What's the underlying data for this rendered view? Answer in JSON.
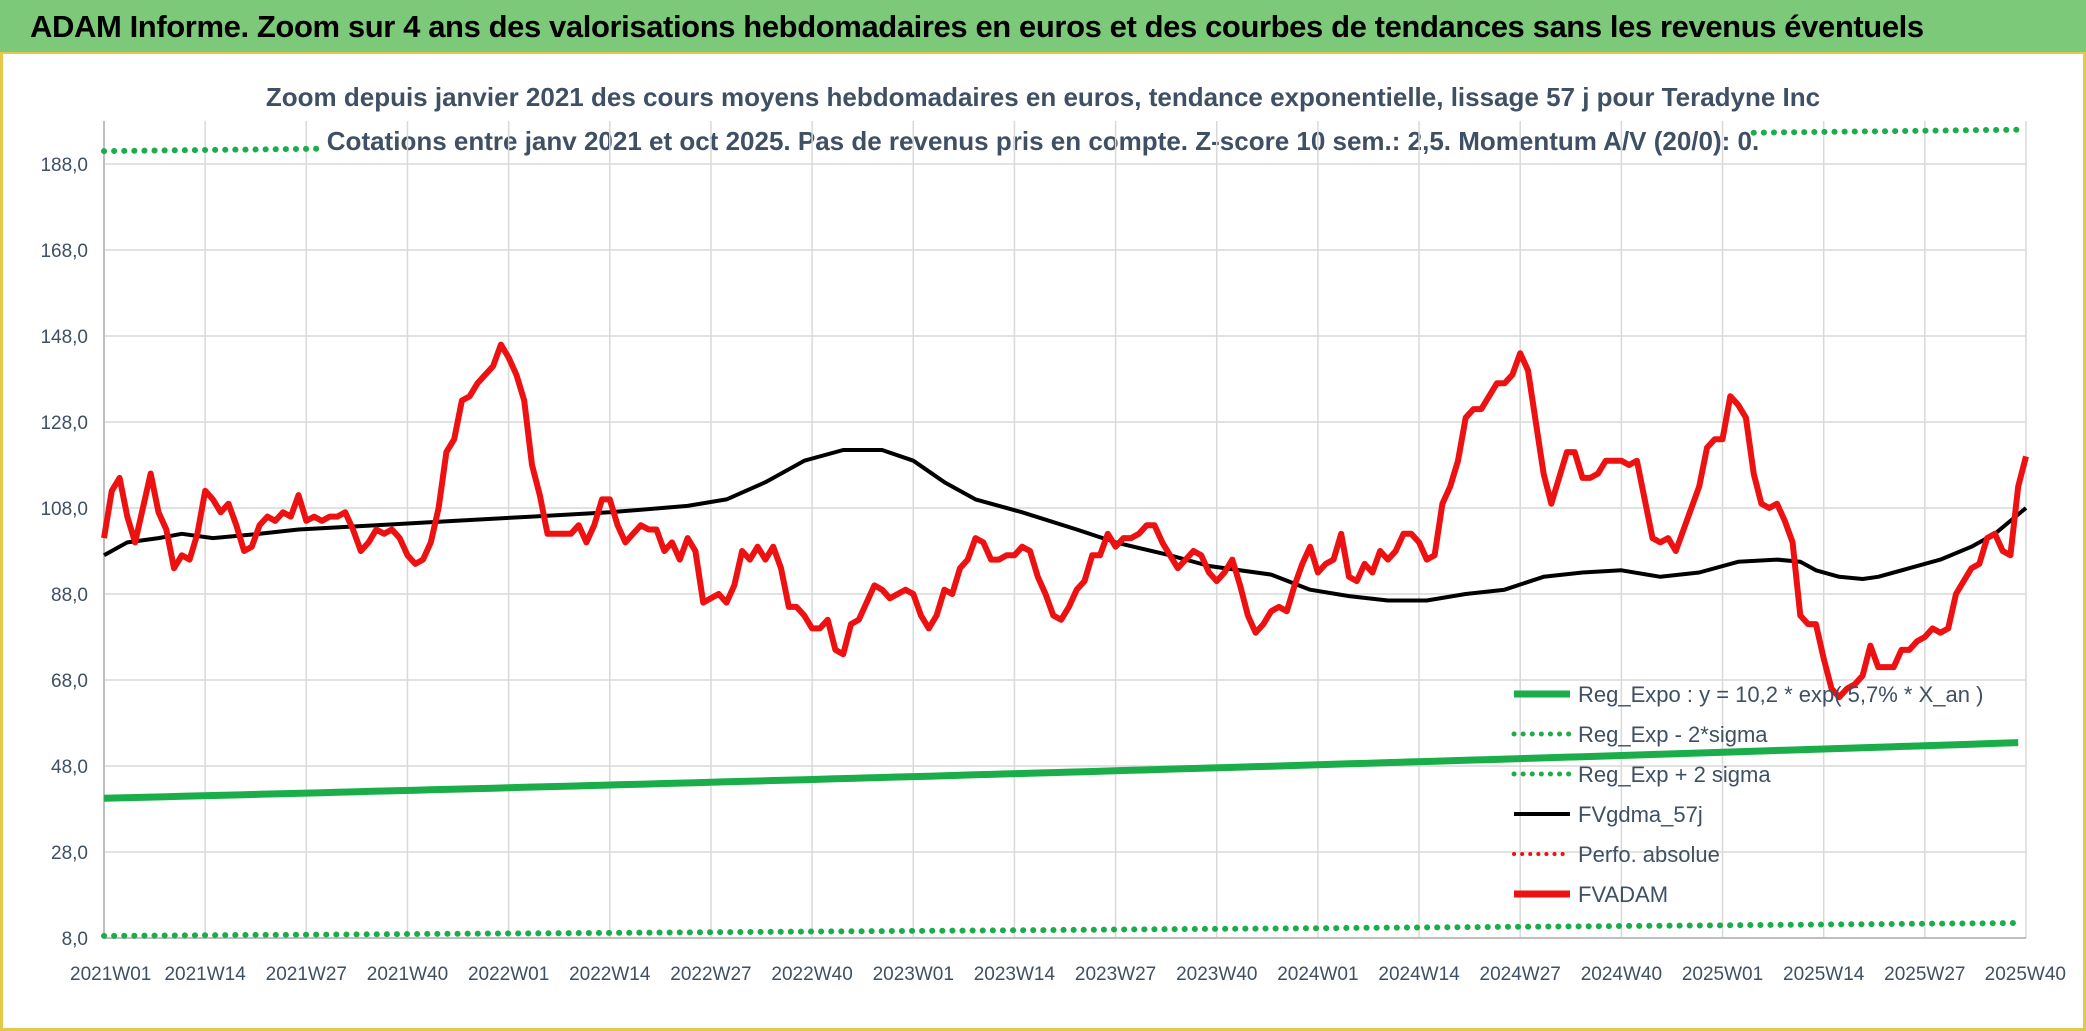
{
  "header": {
    "title": "ADAM Informe. Zoom sur 4 ans des valorisations hebdomadaires en euros et des courbes de tendances sans les revenus éventuels"
  },
  "chart_data": {
    "type": "line",
    "title": "Zoom depuis janvier 2021 des cours moyens hebdomadaires en euros, tendance exponentielle, lissage 57 j pour Teradyne Inc",
    "subtitle": "Cotations entre janv 2021 et oct 2025. Pas de revenus pris en compte. Z-score 10 sem.: 2,5. Momentum A/V (20/0): 0.",
    "ylim": [
      8,
      198
    ],
    "yticks": [
      "8,0",
      "28,0",
      "48,0",
      "68,0",
      "88,0",
      "108,0",
      "128,0",
      "148,0",
      "168,0",
      "188,0"
    ],
    "ytick_values": [
      8,
      28,
      48,
      68,
      88,
      108,
      128,
      148,
      168,
      188
    ],
    "xticks": [
      "2021W01",
      "2021W14",
      "2021W27",
      "2021W40",
      "2022W01",
      "2022W14",
      "2022W27",
      "2022W40",
      "2023W01",
      "2023W14",
      "2023W27",
      "2023W40",
      "2024W01",
      "2024W14",
      "2024W27",
      "2024W40",
      "2025W01",
      "2025W14",
      "2025W27",
      "2025W40"
    ],
    "x_start_label": "2021W01",
    "x_end_label": "2025W40",
    "num_weeks": 248,
    "legend_position": "bottom-right",
    "colors": {
      "green": "#1aad4a",
      "dotted_green": "#1aad4a",
      "black": "#000000",
      "red": "#ee1111"
    },
    "series": [
      {
        "name": "Reg_Expo : y = 10,2 * exp( 5,7% *  X_an )",
        "style": "solid-green",
        "start": 40.5,
        "end": 53.5
      },
      {
        "name": "Reg_Exp - 2*sigma",
        "style": "dotted-green",
        "start": 8.5,
        "end": 11.5
      },
      {
        "name": "Reg_Exp + 2 sigma",
        "style": "dotted-green",
        "start": 191,
        "end": 196
      },
      {
        "name": "FVgdma_57j",
        "style": "solid-black",
        "points": [
          [
            0,
            97
          ],
          [
            3,
            100
          ],
          [
            7,
            101
          ],
          [
            10,
            102
          ],
          [
            14,
            101
          ],
          [
            20,
            102
          ],
          [
            25,
            103
          ],
          [
            35,
            104
          ],
          [
            45,
            105
          ],
          [
            55,
            106
          ],
          [
            65,
            107
          ],
          [
            75,
            108.5
          ],
          [
            80,
            110
          ],
          [
            85,
            114
          ],
          [
            90,
            119
          ],
          [
            95,
            121.5
          ],
          [
            100,
            121.5
          ],
          [
            104,
            119
          ],
          [
            108,
            114
          ],
          [
            112,
            110
          ],
          [
            118,
            107
          ],
          [
            125,
            103
          ],
          [
            130,
            100
          ],
          [
            137,
            97
          ],
          [
            142,
            94.5
          ],
          [
            150,
            92.5
          ],
          [
            155,
            89
          ],
          [
            160,
            87.5
          ],
          [
            165,
            86.5
          ],
          [
            170,
            86.5
          ],
          [
            175,
            88
          ],
          [
            180,
            89
          ],
          [
            185,
            92
          ],
          [
            190,
            93
          ],
          [
            195,
            93.5
          ],
          [
            200,
            92
          ],
          [
            205,
            93
          ],
          [
            210,
            95.5
          ],
          [
            215,
            96
          ],
          [
            218,
            95.5
          ],
          [
            220,
            93.5
          ],
          [
            223,
            92
          ],
          [
            226,
            91.5
          ],
          [
            228,
            92
          ],
          [
            232,
            94
          ],
          [
            236,
            96
          ],
          [
            240,
            99
          ],
          [
            243,
            102
          ],
          [
            245,
            105
          ],
          [
            247,
            108
          ]
        ]
      },
      {
        "name": "Perfo. absolue",
        "style": "dotted-red",
        "points": []
      },
      {
        "name": "FVADAM",
        "style": "solid-red",
        "points": [
          [
            0,
            101
          ],
          [
            1,
            112
          ],
          [
            2,
            115
          ],
          [
            3,
            106
          ],
          [
            4,
            100
          ],
          [
            5,
            108
          ],
          [
            6,
            116
          ],
          [
            7,
            107
          ],
          [
            8,
            103
          ],
          [
            9,
            94
          ],
          [
            10,
            97
          ],
          [
            11,
            96
          ],
          [
            12,
            102
          ],
          [
            13,
            112
          ],
          [
            14,
            110
          ],
          [
            15,
            107
          ],
          [
            16,
            109
          ],
          [
            17,
            104
          ],
          [
            18,
            98
          ],
          [
            19,
            99
          ],
          [
            20,
            104
          ],
          [
            21,
            106
          ],
          [
            22,
            105
          ],
          [
            23,
            107
          ],
          [
            24,
            106
          ],
          [
            25,
            111
          ],
          [
            26,
            105
          ],
          [
            27,
            106
          ],
          [
            28,
            105
          ],
          [
            29,
            106
          ],
          [
            30,
            106
          ],
          [
            31,
            107
          ],
          [
            32,
            103
          ],
          [
            33,
            98
          ],
          [
            34,
            100
          ],
          [
            35,
            103
          ],
          [
            36,
            102
          ],
          [
            37,
            103
          ],
          [
            38,
            101
          ],
          [
            39,
            97
          ],
          [
            40,
            95
          ],
          [
            41,
            96
          ],
          [
            42,
            100
          ],
          [
            43,
            108
          ],
          [
            44,
            121
          ],
          [
            45,
            124
          ],
          [
            46,
            133
          ],
          [
            47,
            134
          ],
          [
            48,
            137
          ],
          [
            49,
            139
          ],
          [
            50,
            141
          ],
          [
            51,
            146
          ],
          [
            52,
            143
          ],
          [
            53,
            139
          ],
          [
            54,
            133
          ],
          [
            55,
            118
          ],
          [
            56,
            111
          ],
          [
            57,
            102
          ],
          [
            58,
            102
          ],
          [
            59,
            102
          ],
          [
            60,
            102
          ],
          [
            61,
            104
          ],
          [
            62,
            100
          ],
          [
            63,
            104
          ],
          [
            64,
            110
          ],
          [
            65,
            110
          ],
          [
            66,
            104
          ],
          [
            67,
            100
          ],
          [
            68,
            102
          ],
          [
            69,
            104
          ],
          [
            70,
            103
          ],
          [
            71,
            103
          ],
          [
            72,
            98
          ],
          [
            73,
            100
          ],
          [
            74,
            96
          ],
          [
            75,
            101
          ],
          [
            76,
            98
          ],
          [
            77,
            86
          ],
          [
            78,
            87
          ],
          [
            79,
            88
          ],
          [
            80,
            86
          ],
          [
            81,
            90
          ],
          [
            82,
            98
          ],
          [
            83,
            96
          ],
          [
            84,
            99
          ],
          [
            85,
            96
          ],
          [
            86,
            99
          ],
          [
            87,
            94
          ],
          [
            88,
            85
          ],
          [
            89,
            85
          ],
          [
            90,
            83
          ],
          [
            91,
            80
          ],
          [
            92,
            80
          ],
          [
            93,
            82
          ],
          [
            94,
            75
          ],
          [
            95,
            74
          ],
          [
            96,
            81
          ],
          [
            97,
            82
          ],
          [
            98,
            86
          ],
          [
            99,
            90
          ],
          [
            100,
            89
          ],
          [
            101,
            87
          ],
          [
            102,
            88
          ],
          [
            103,
            89
          ],
          [
            104,
            88
          ],
          [
            105,
            83
          ],
          [
            106,
            80
          ],
          [
            107,
            83
          ],
          [
            108,
            89
          ],
          [
            109,
            88
          ],
          [
            110,
            94
          ],
          [
            111,
            96
          ],
          [
            112,
            101
          ],
          [
            113,
            100
          ],
          [
            114,
            96
          ],
          [
            115,
            96
          ],
          [
            116,
            97
          ],
          [
            117,
            97
          ],
          [
            118,
            99
          ],
          [
            119,
            98
          ],
          [
            120,
            92
          ],
          [
            121,
            88
          ],
          [
            122,
            83
          ],
          [
            123,
            82
          ],
          [
            124,
            85
          ],
          [
            125,
            89
          ],
          [
            126,
            91
          ],
          [
            127,
            97
          ],
          [
            128,
            97
          ],
          [
            129,
            102
          ],
          [
            130,
            99
          ],
          [
            131,
            101
          ],
          [
            132,
            101
          ],
          [
            133,
            102
          ],
          [
            134,
            104
          ],
          [
            135,
            104
          ],
          [
            136,
            100
          ],
          [
            137,
            97
          ],
          [
            138,
            94
          ],
          [
            139,
            96
          ],
          [
            140,
            98
          ],
          [
            141,
            97
          ],
          [
            142,
            93
          ],
          [
            143,
            91
          ],
          [
            144,
            93
          ],
          [
            145,
            96
          ],
          [
            146,
            90
          ],
          [
            147,
            83
          ],
          [
            148,
            79
          ],
          [
            149,
            81
          ],
          [
            150,
            84
          ],
          [
            151,
            85
          ],
          [
            152,
            84
          ],
          [
            153,
            90
          ],
          [
            154,
            95
          ],
          [
            155,
            99
          ],
          [
            156,
            93
          ],
          [
            157,
            95
          ],
          [
            158,
            96
          ],
          [
            159,
            102
          ],
          [
            160,
            92
          ],
          [
            161,
            91
          ],
          [
            162,
            95
          ],
          [
            163,
            93
          ],
          [
            164,
            98
          ],
          [
            165,
            96
          ],
          [
            166,
            98
          ],
          [
            167,
            102
          ],
          [
            168,
            102
          ],
          [
            169,
            100
          ],
          [
            170,
            96
          ],
          [
            171,
            97
          ],
          [
            172,
            109
          ],
          [
            173,
            113
          ],
          [
            174,
            119
          ],
          [
            175,
            129
          ],
          [
            176,
            131
          ],
          [
            177,
            131
          ],
          [
            178,
            134
          ],
          [
            179,
            137
          ],
          [
            180,
            137
          ],
          [
            181,
            139
          ],
          [
            182,
            144
          ],
          [
            183,
            140
          ],
          [
            184,
            128
          ],
          [
            185,
            116
          ],
          [
            186,
            109
          ],
          [
            187,
            115
          ],
          [
            188,
            121
          ],
          [
            189,
            121
          ],
          [
            190,
            115
          ],
          [
            191,
            115
          ],
          [
            192,
            116
          ],
          [
            193,
            119
          ],
          [
            194,
            119
          ],
          [
            195,
            119
          ],
          [
            196,
            118
          ],
          [
            197,
            119
          ],
          [
            198,
            110
          ],
          [
            199,
            101
          ],
          [
            200,
            100
          ],
          [
            201,
            101
          ],
          [
            202,
            98
          ],
          [
            203,
            103
          ],
          [
            204,
            108
          ],
          [
            205,
            113
          ],
          [
            206,
            122
          ],
          [
            207,
            124
          ],
          [
            208,
            124
          ],
          [
            209,
            134
          ],
          [
            210,
            132
          ],
          [
            211,
            129
          ],
          [
            212,
            116
          ],
          [
            213,
            109
          ],
          [
            214,
            108
          ],
          [
            215,
            109
          ],
          [
            216,
            105
          ],
          [
            217,
            100
          ],
          [
            218,
            83
          ],
          [
            219,
            81
          ],
          [
            220,
            81
          ],
          [
            221,
            73
          ],
          [
            222,
            66
          ],
          [
            223,
            64
          ],
          [
            224,
            66
          ],
          [
            225,
            67
          ],
          [
            226,
            69
          ],
          [
            227,
            76
          ],
          [
            228,
            71
          ],
          [
            229,
            71
          ],
          [
            230,
            71
          ],
          [
            231,
            75
          ],
          [
            232,
            75
          ],
          [
            233,
            77
          ],
          [
            234,
            78
          ],
          [
            235,
            80
          ],
          [
            236,
            79
          ],
          [
            237,
            80
          ],
          [
            238,
            88
          ],
          [
            239,
            91
          ],
          [
            240,
            94
          ],
          [
            241,
            95
          ],
          [
            242,
            101
          ],
          [
            243,
            102
          ],
          [
            244,
            98
          ],
          [
            245,
            97
          ],
          [
            246,
            113
          ],
          [
            247,
            120
          ]
        ]
      }
    ]
  }
}
